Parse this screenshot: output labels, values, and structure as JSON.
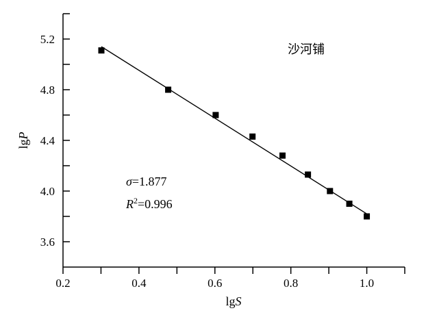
{
  "chart_data": {
    "type": "scatter",
    "title": "",
    "xlabel": {
      "prefix": "lg",
      "var": "S"
    },
    "ylabel": {
      "prefix": "lg",
      "var": "P"
    },
    "xlim": [
      0.2,
      1.1
    ],
    "ylim": [
      3.4,
      5.4
    ],
    "x_ticks": [
      0.2,
      0.4,
      0.6,
      0.8,
      1.0
    ],
    "x_tick_labels": [
      "0.2",
      "0.4",
      "0.6",
      "0.8",
      "1.0"
    ],
    "y_ticks": [
      3.6,
      4.0,
      4.4,
      4.8,
      5.2
    ],
    "y_tick_labels": [
      "3.6",
      "4.0",
      "4.4",
      "4.8",
      "5.2"
    ],
    "grid": false,
    "series": [
      {
        "x": [
          0.301,
          0.477,
          0.602,
          0.699,
          0.778,
          0.845,
          0.903,
          0.954,
          1.0
        ],
        "y": [
          5.11,
          4.8,
          4.6,
          4.43,
          4.28,
          4.13,
          4.0,
          3.9,
          3.8
        ]
      }
    ],
    "fit_line": {
      "x": [
        0.301,
        1.0
      ],
      "y": [
        5.14,
        3.82
      ]
    },
    "annotations": {
      "site": "沙河铺",
      "sigma_symbol": "σ",
      "sigma_value": "=1.877",
      "r2_symbol": "R",
      "r2_exp": "2",
      "r2_value": "=0.996"
    }
  }
}
